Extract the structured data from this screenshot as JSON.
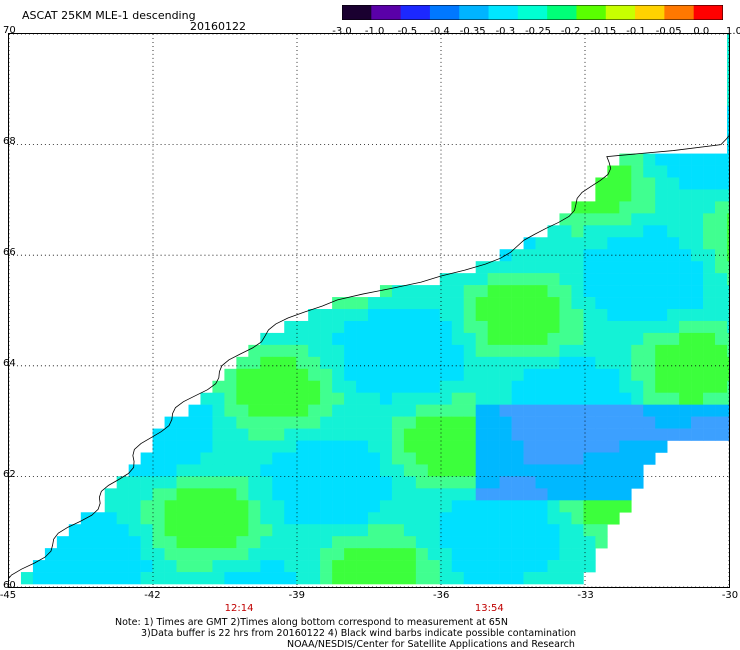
{
  "header": {
    "title": "ASCAT 25KM MLE-1 descending",
    "date": "20160122"
  },
  "colorbar": {
    "tick_labels": [
      "-3.0",
      "-1.0",
      "-0.5",
      "-0.4",
      "-0.35",
      "-0.3",
      "-0.25",
      "-0.2",
      "-0.15",
      "-0.1",
      "-0.05",
      "0.0",
      "1.0"
    ],
    "colors": [
      "#1a0030",
      "#5a00a8",
      "#1c28ff",
      "#0078ff",
      "#00b4ff",
      "#00e6ff",
      "#00ffd2",
      "#00ff78",
      "#5aff00",
      "#c8ff00",
      "#ffd200",
      "#ff7800",
      "#ff0000"
    ]
  },
  "map": {
    "lat_labels": [
      "70",
      "68",
      "66",
      "64",
      "62",
      "60"
    ],
    "lon_labels": [
      "-45",
      "-42",
      "-39",
      "-36",
      "-33",
      "-30"
    ],
    "lat_values": [
      70,
      68,
      66,
      64,
      62,
      60
    ],
    "lon_values": [
      -45,
      -42,
      -39,
      -36,
      -33,
      -30
    ],
    "time_labels": [
      "12:14",
      "13:54"
    ],
    "time_lons": [
      -40.2,
      -35.0
    ],
    "ocean_color": "#14f2d6",
    "coast_color": "#000000",
    "time_color": "#c00000"
  },
  "notes": {
    "line1": "Note: 1) Times are GMT 2)Times along bottom correspond to measurement at 65N",
    "line2": "3)Data buffer is 22 hrs from 20160122 4) Black wind barbs indicate possible contamination",
    "line3": "NOAA/NESDIS/Center for Satellite Applications and Research"
  }
}
